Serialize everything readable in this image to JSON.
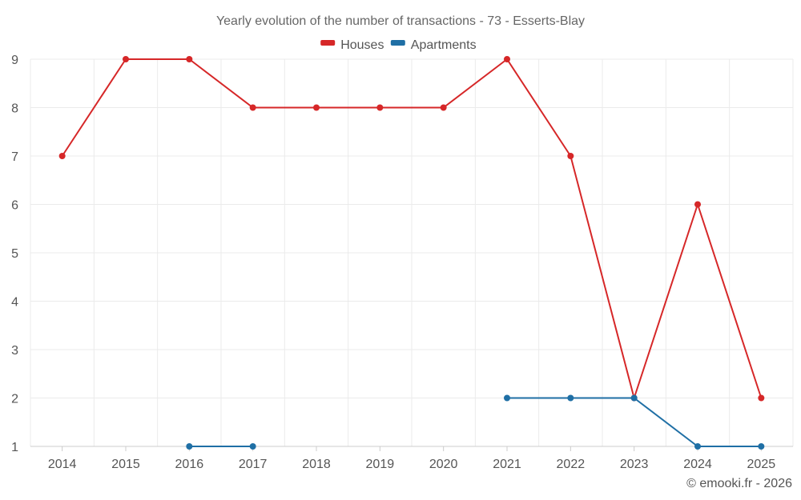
{
  "chart_data": {
    "type": "line",
    "title": "Yearly evolution of the number of transactions - 73 - Esserts-Blay",
    "categories": [
      "2014",
      "2015",
      "2016",
      "2017",
      "2018",
      "2019",
      "2020",
      "2021",
      "2022",
      "2023",
      "2024",
      "2025"
    ],
    "series": [
      {
        "name": "Houses",
        "color": "#d62728",
        "values": [
          7,
          9,
          9,
          8,
          8,
          8,
          8,
          9,
          7,
          2,
          6,
          2
        ]
      },
      {
        "name": "Apartments",
        "color": "#1f6fa5",
        "values": [
          null,
          null,
          1,
          1,
          null,
          null,
          null,
          2,
          2,
          2,
          1,
          1
        ]
      }
    ],
    "ylim": [
      1,
      9
    ],
    "yticks": [
      1,
      2,
      3,
      4,
      5,
      6,
      7,
      8,
      9
    ],
    "grid": true,
    "legend_position": "top-center",
    "xlabel": "",
    "ylabel": ""
  },
  "credit": "© emooki.fr - 2026"
}
